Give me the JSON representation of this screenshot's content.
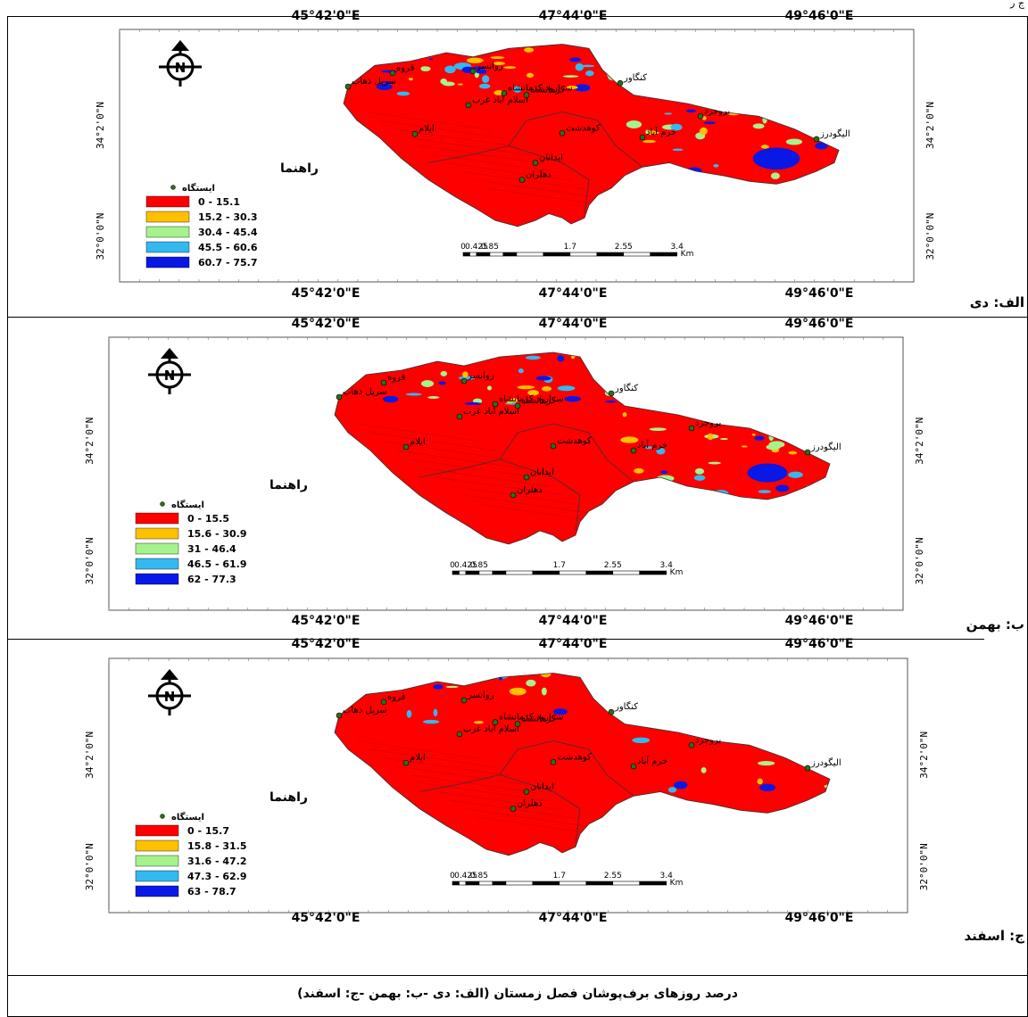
{
  "corner_mark": "ج ر",
  "caption": "درصد روزهای برف‌پوشان فصل زمستان (الف: دی -ب: بهمن -ج: اسفند)",
  "colors": {
    "class1": "#ff0000",
    "class2": "#ffc000",
    "class3": "#a6f28c",
    "class4": "#33b9f0",
    "class5": "#0a18e6",
    "boundary": "#333333",
    "station": "#2a6e1a"
  },
  "panels": [
    {
      "label": "الف: دی",
      "top_lon": [
        "45°42'0\"E",
        "47°44'0\"E",
        "49°46'0\"E"
      ],
      "bottom_lon": [
        "45°42'0\"E",
        "47°44'0\"E",
        "49°46'0\"E"
      ],
      "lat": [
        "34°2'0\"N",
        "32°0'0\"N"
      ],
      "legend_title": "راهنما",
      "station_label": "ایستگاه",
      "classes": [
        "0 - 15.1",
        "15.2 - 30.3",
        "30.4 - 45.4",
        "45.5 - 60.6",
        "60.7 - 75.7"
      ],
      "scale": [
        "0",
        "0.425",
        "0.85",
        "1.7",
        "2.55",
        "3.4"
      ],
      "scale_unit": "Km",
      "snow_fraction": 0.35
    },
    {
      "label": "ب: بهمن",
      "top_lon": [
        "45°42'0\"E",
        "47°44'0\"E",
        "49°46'0\"E"
      ],
      "bottom_lon": [
        "45°42'0\"E",
        "47°44'0\"E",
        "49°46'0\"E"
      ],
      "lat": [
        "34°2'0\"N",
        "32°0'0\"N"
      ],
      "legend_title": "راهنما",
      "station_label": "ایستگاه",
      "classes": [
        "0 - 15.5",
        "15.6 - 30.9",
        "31 - 46.4",
        "46.5 - 61.9",
        "62 - 77.3"
      ],
      "scale": [
        "0",
        "0.425",
        "0.85",
        "1.7",
        "2.55",
        "3.4"
      ],
      "scale_unit": "Km",
      "snow_fraction": 0.3
    },
    {
      "label": "ج: اسفند",
      "top_lon": [
        "45°42'0\"E",
        "47°44'0\"E",
        "49°46'0\"E"
      ],
      "bottom_lon": [
        "45°42'0\"E",
        "47°44'0\"E",
        "49°46'0\"E"
      ],
      "lat": [
        "34°2'0\"N",
        "32°0'0\"N"
      ],
      "legend_title": "راهنما",
      "station_label": "ایستگاه",
      "classes": [
        "0 - 15.7",
        "15.8 - 31.5",
        "31.6 - 47.2",
        "47.3 - 62.9",
        "63 - 78.7"
      ],
      "scale": [
        "0",
        "0.425",
        "0.85",
        "1.7",
        "2.55",
        "3.4"
      ],
      "scale_unit": "Km",
      "snow_fraction": 0.12
    }
  ],
  "stations": [
    "روانسر",
    "قروه",
    "کنگاور",
    "اسلام آباد غرب",
    "سرپل ذهاب",
    "ایلام",
    "کوهدشت",
    "خرم آباد",
    "بروجرد",
    "الیگودرز",
    "ایدانان",
    "دهلران",
    "سرارود کرمانشاه",
    "کرمانشاه"
  ]
}
